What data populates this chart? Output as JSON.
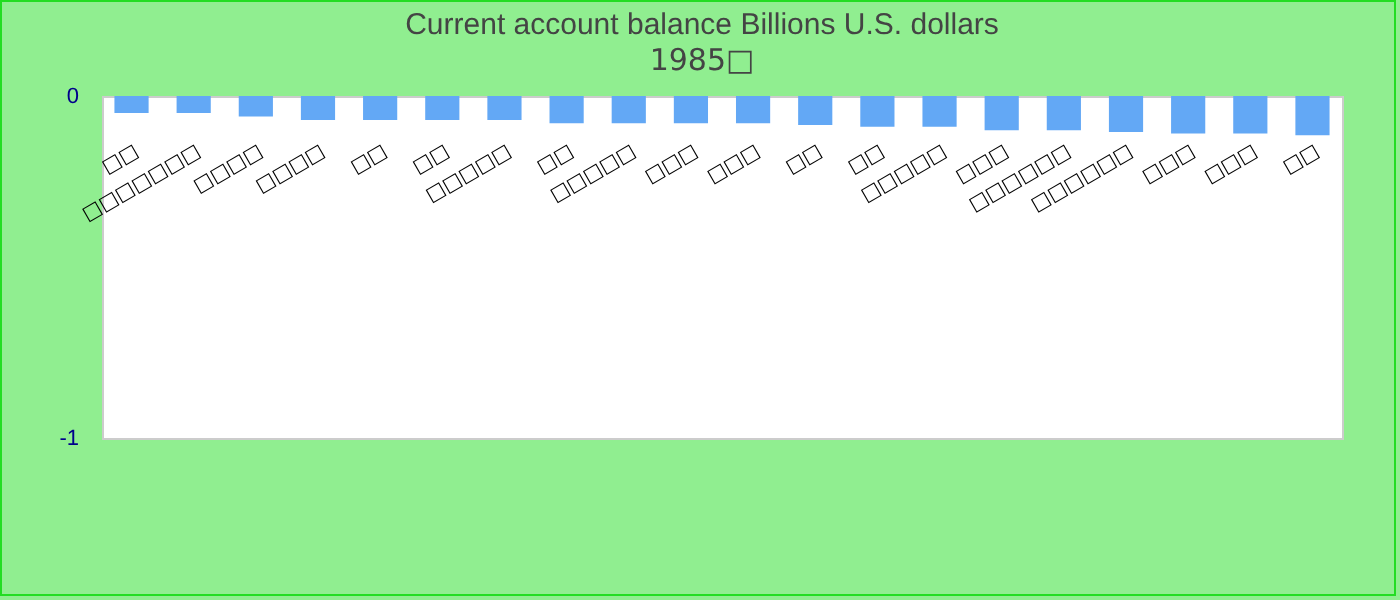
{
  "chart_data": {
    "type": "bar",
    "title": "Current account balance Billions U.S. dollars",
    "subtitle": "1985□",
    "categories": [
      "□□",
      "□□□□□□□",
      "□□□□",
      "□□□□",
      "□□",
      "□□",
      "□□□□□",
      "□□",
      "□□□□□",
      "□□□",
      "□□□",
      "□□",
      "□□",
      "□□□□□",
      "□□□",
      "□□□□□□",
      "□□□□□□",
      "□□□",
      "□□□",
      "□□"
    ],
    "values": [
      -0.05,
      -0.05,
      -0.06,
      -0.07,
      -0.07,
      -0.07,
      -0.07,
      -0.08,
      -0.08,
      -0.08,
      -0.08,
      -0.085,
      -0.09,
      -0.09,
      -0.1,
      -0.1,
      -0.105,
      -0.11,
      -0.11,
      -0.115
    ],
    "color": "#63a8f5",
    "ylim": [
      -1,
      0
    ],
    "yticks": [
      {
        "value": -1,
        "label": "-1"
      },
      {
        "value": 0,
        "label": "0"
      }
    ],
    "grid": false
  }
}
